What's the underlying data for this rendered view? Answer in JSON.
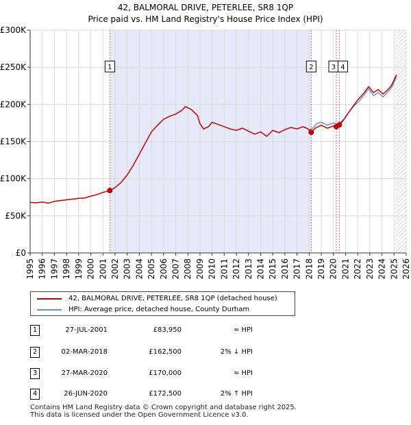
{
  "chart_data": {
    "type": "line",
    "title": "42, BALMORAL DRIVE, PETERLEE, SR8 1QP",
    "subtitle": "Price paid vs. HM Land Registry's House Price Index (HPI)",
    "xlabel": "",
    "ylabel": "",
    "xlim": [
      1995,
      2026
    ],
    "ylim": [
      0,
      300000
    ],
    "x_ticks": [
      "1995",
      "1996",
      "1997",
      "1998",
      "1999",
      "2000",
      "2001",
      "2002",
      "2003",
      "2004",
      "2005",
      "2006",
      "2007",
      "2008",
      "2009",
      "2010",
      "2011",
      "2012",
      "2013",
      "2014",
      "2015",
      "2016",
      "2017",
      "2018",
      "2019",
      "2020",
      "2021",
      "2022",
      "2023",
      "2024",
      "2025",
      "2026"
    ],
    "y_ticks": [
      {
        "value": 0,
        "label": "£0"
      },
      {
        "value": 50000,
        "label": "£50K"
      },
      {
        "value": 100000,
        "label": "£100K"
      },
      {
        "value": 150000,
        "label": "£150K"
      },
      {
        "value": 200000,
        "label": "£200K"
      },
      {
        "value": 250000,
        "label": "£250K"
      },
      {
        "value": 300000,
        "label": "£300K"
      }
    ],
    "grid": true,
    "series": [
      {
        "name": "42, BALMORAL DRIVE, PETERLEE, SR8 1QP (detached house)",
        "color": "#c00000",
        "points": [
          [
            1995.0,
            68000
          ],
          [
            1995.5,
            67500
          ],
          [
            1996.0,
            68500
          ],
          [
            1996.5,
            67000
          ],
          [
            1997.0,
            69500
          ],
          [
            1997.5,
            70500
          ],
          [
            1998.0,
            71500
          ],
          [
            1998.5,
            72500
          ],
          [
            1999.0,
            73500
          ],
          [
            1999.5,
            74000
          ],
          [
            2000.0,
            76500
          ],
          [
            2000.5,
            78500
          ],
          [
            2001.0,
            81500
          ],
          [
            2001.57,
            83950
          ],
          [
            2002.0,
            88000
          ],
          [
            2002.5,
            95000
          ],
          [
            2003.0,
            105000
          ],
          [
            2003.5,
            118000
          ],
          [
            2004.0,
            133000
          ],
          [
            2004.5,
            148000
          ],
          [
            2005.0,
            163000
          ],
          [
            2005.5,
            172000
          ],
          [
            2006.0,
            180000
          ],
          [
            2006.5,
            184000
          ],
          [
            2007.0,
            187000
          ],
          [
            2007.5,
            192000
          ],
          [
            2007.8,
            197000
          ],
          [
            2008.3,
            193000
          ],
          [
            2008.8,
            185000
          ],
          [
            2009.0,
            174000
          ],
          [
            2009.3,
            167000
          ],
          [
            2009.7,
            170000
          ],
          [
            2010.0,
            176000
          ],
          [
            2010.5,
            173000
          ],
          [
            2011.0,
            170000
          ],
          [
            2011.5,
            167000
          ],
          [
            2012.0,
            165000
          ],
          [
            2012.5,
            168000
          ],
          [
            2013.0,
            164000
          ],
          [
            2013.5,
            160000
          ],
          [
            2014.0,
            163000
          ],
          [
            2014.5,
            157000
          ],
          [
            2015.0,
            165000
          ],
          [
            2015.5,
            162000
          ],
          [
            2016.0,
            166000
          ],
          [
            2016.5,
            169000
          ],
          [
            2017.0,
            167000
          ],
          [
            2017.5,
            170000
          ],
          [
            2017.9,
            167000
          ],
          [
            2018.17,
            162500
          ],
          [
            2018.5,
            168000
          ],
          [
            2019.0,
            172000
          ],
          [
            2019.5,
            168000
          ],
          [
            2020.0,
            171000
          ],
          [
            2020.24,
            170000
          ],
          [
            2020.49,
            172500
          ],
          [
            2020.8,
            178000
          ],
          [
            2021.2,
            188000
          ],
          [
            2021.6,
            197000
          ],
          [
            2022.0,
            206000
          ],
          [
            2022.5,
            215000
          ],
          [
            2022.9,
            224000
          ],
          [
            2023.3,
            216000
          ],
          [
            2023.7,
            220000
          ],
          [
            2024.1,
            214000
          ],
          [
            2024.5,
            220000
          ],
          [
            2024.8,
            226000
          ],
          [
            2025.2,
            240000
          ]
        ]
      },
      {
        "name": "HPI: Average price, detached house, County Durham",
        "color": "#6b8fd4",
        "points": [
          [
            2017.6,
            170000
          ],
          [
            2018.0,
            166000
          ],
          [
            2018.3,
            168000
          ],
          [
            2018.6,
            174000
          ],
          [
            2019.0,
            176000
          ],
          [
            2019.5,
            172000
          ],
          [
            2020.0,
            175000
          ],
          [
            2020.3,
            174000
          ],
          [
            2020.6,
            176000
          ],
          [
            2020.9,
            181000
          ],
          [
            2021.3,
            190000
          ],
          [
            2021.7,
            198000
          ],
          [
            2022.1,
            204000
          ],
          [
            2022.5,
            212000
          ],
          [
            2022.9,
            221000
          ],
          [
            2023.3,
            212000
          ],
          [
            2023.7,
            216000
          ],
          [
            2024.1,
            210000
          ],
          [
            2024.5,
            217000
          ],
          [
            2024.8,
            223000
          ],
          [
            2025.2,
            237000
          ]
        ]
      }
    ],
    "transactions": [
      {
        "label": "1",
        "date": "27-JUL-2001",
        "x": 2001.57,
        "price_value": 83950,
        "price": "£83,950",
        "hpi": "≈ HPI"
      },
      {
        "label": "2",
        "date": "02-MAR-2018",
        "x": 2018.17,
        "price_value": 162500,
        "price": "£162,500",
        "hpi": "2% ↓ HPI"
      },
      {
        "label": "3",
        "date": "27-MAR-2020",
        "x": 2020.24,
        "price_value": 170000,
        "price": "£170,000",
        "hpi": "≈ HPI"
      },
      {
        "label": "4",
        "date": "26-JUN-2020",
        "x": 2020.49,
        "price_value": 172500,
        "price": "£172,500",
        "hpi": "2% ↑ HPI"
      }
    ],
    "shaded_ranges": [
      [
        2001.57,
        2018.17
      ]
    ],
    "hatched_range": [
      2025.1,
      2026
    ]
  },
  "footer": {
    "line1": "Contains HM Land Registry data © Crown copyright and database right 2025.",
    "line2": "This data is licensed under the Open Government Licence v3.0."
  }
}
